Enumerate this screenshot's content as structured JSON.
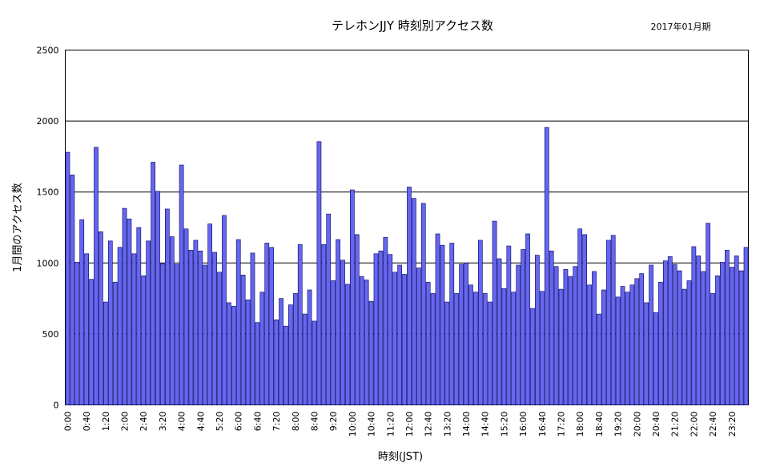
{
  "chart_data": {
    "type": "bar",
    "title": "テレホンJJY 時刻別アクセス数",
    "date_label": "2017年01月期",
    "xlabel": "時刻(JST)",
    "ylabel": "1月間のアクセス数",
    "ylim": [
      0,
      2500
    ],
    "yticks": [
      0,
      500,
      1000,
      1500,
      2000,
      2500
    ],
    "grid": true,
    "bar_color": "#6666ee",
    "x_tick_labels": [
      "0:00",
      "0:40",
      "1:20",
      "2:00",
      "2:40",
      "3:20",
      "4:00",
      "4:40",
      "5:20",
      "6:00",
      "6:40",
      "7:20",
      "8:00",
      "8:40",
      "9:20",
      "10:00",
      "10:40",
      "11:20",
      "12:00",
      "12:40",
      "13:20",
      "14:00",
      "14:40",
      "15:20",
      "16:00",
      "16:40",
      "17:20",
      "18:00",
      "18:40",
      "19:20",
      "20:00",
      "20:40",
      "21:20",
      "22:00",
      "22:40",
      "23:20"
    ],
    "interval_minutes": 10,
    "values": [
      1780,
      1620,
      1005,
      1305,
      1065,
      885,
      1815,
      1220,
      725,
      1155,
      865,
      1110,
      1385,
      1310,
      1065,
      1250,
      910,
      1155,
      1710,
      1505,
      995,
      1380,
      1185,
      990,
      1690,
      1240,
      1090,
      1160,
      1085,
      985,
      1275,
      1075,
      935,
      1335,
      720,
      695,
      1165,
      915,
      740,
      1070,
      580,
      795,
      1140,
      1110,
      600,
      750,
      555,
      705,
      785,
      1130,
      640,
      810,
      590,
      1855,
      1130,
      1345,
      875,
      1165,
      1020,
      850,
      1515,
      1200,
      905,
      880,
      730,
      1065,
      1085,
      1180,
      1060,
      935,
      985,
      920,
      1535,
      1455,
      965,
      1420,
      865,
      785,
      1205,
      1125,
      725,
      1140,
      785,
      990,
      1000,
      845,
      795,
      1160,
      785,
      725,
      1295,
      1030,
      820,
      1120,
      795,
      985,
      1095,
      1205,
      680,
      1055,
      800,
      1955,
      1085,
      975,
      815,
      955,
      905,
      975,
      1240,
      1200,
      845,
      940,
      640,
      810,
      1160,
      1195,
      760,
      835,
      795,
      845,
      890,
      925,
      720,
      985,
      650,
      865,
      1015,
      1045,
      990,
      945,
      815,
      875,
      1115,
      1050,
      940,
      1280,
      785,
      910,
      1005,
      1090,
      970,
      1050,
      945,
      1110
    ]
  }
}
